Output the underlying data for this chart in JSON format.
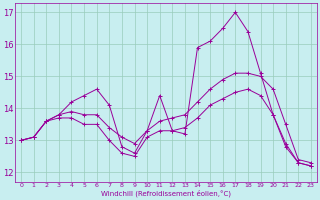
{
  "bg_color": "#c8eef0",
  "line_color": "#990099",
  "grid_color": "#99ccbb",
  "xlabel": "Windchill (Refroidissement éolien,°C)",
  "ylabel_yticks": [
    12,
    13,
    14,
    15,
    16,
    17
  ],
  "xlim": [
    -0.5,
    23.5
  ],
  "ylim": [
    11.7,
    17.3
  ],
  "series": [
    {
      "x": [
        0,
        1,
        2,
        3,
        4,
        5,
        6,
        7,
        8,
        9,
        10,
        11,
        12,
        13,
        14,
        15,
        16,
        17,
        18,
        19,
        20,
        21,
        22,
        23
      ],
      "y": [
        13.0,
        13.1,
        13.6,
        13.8,
        14.2,
        14.4,
        14.6,
        14.1,
        12.8,
        12.6,
        13.3,
        14.4,
        13.3,
        13.2,
        15.9,
        16.1,
        16.5,
        17.0,
        16.4,
        15.1,
        13.8,
        12.8,
        12.3,
        12.2
      ]
    },
    {
      "x": [
        0,
        1,
        2,
        3,
        4,
        5,
        6,
        7,
        8,
        9,
        10,
        11,
        12,
        13,
        14,
        15,
        16,
        17,
        18,
        19,
        20,
        21,
        22,
        23
      ],
      "y": [
        13.0,
        13.1,
        13.6,
        13.8,
        13.9,
        13.8,
        13.8,
        13.4,
        13.1,
        12.9,
        13.3,
        13.6,
        13.7,
        13.8,
        14.2,
        14.6,
        14.9,
        15.1,
        15.1,
        15.0,
        14.6,
        13.5,
        12.4,
        12.3
      ]
    },
    {
      "x": [
        0,
        1,
        2,
        3,
        4,
        5,
        6,
        7,
        8,
        9,
        10,
        11,
        12,
        13,
        14,
        15,
        16,
        17,
        18,
        19,
        20,
        21,
        22,
        23
      ],
      "y": [
        13.0,
        13.1,
        13.6,
        13.7,
        13.7,
        13.5,
        13.5,
        13.0,
        12.6,
        12.5,
        13.1,
        13.3,
        13.3,
        13.4,
        13.7,
        14.1,
        14.3,
        14.5,
        14.6,
        14.4,
        13.8,
        12.9,
        12.3,
        12.2
      ]
    }
  ]
}
